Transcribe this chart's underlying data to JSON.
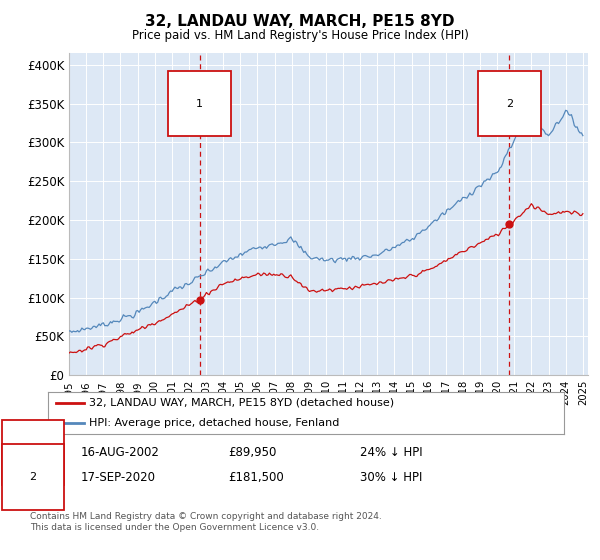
{
  "title": "32, LANDAU WAY, MARCH, PE15 8YD",
  "subtitle": "Price paid vs. HM Land Registry's House Price Index (HPI)",
  "y_ticks": [
    0,
    50000,
    100000,
    150000,
    200000,
    250000,
    300000,
    350000,
    400000
  ],
  "y_tick_labels": [
    "£0",
    "£50K",
    "£100K",
    "£150K",
    "£200K",
    "£250K",
    "£300K",
    "£350K",
    "£400K"
  ],
  "hpi_color": "#5588bb",
  "price_color": "#cc1111",
  "background_color": "#dde8f5",
  "marker1_year": 2002.625,
  "marker1_price": 89950,
  "marker1_date": "16-AUG-2002",
  "marker1_pct": "24% ↓ HPI",
  "marker2_year": 2020.708,
  "marker2_price": 181500,
  "marker2_date": "17-SEP-2020",
  "marker2_pct": "30% ↓ HPI",
  "legend_label1": "32, LANDAU WAY, MARCH, PE15 8YD (detached house)",
  "legend_label2": "HPI: Average price, detached house, Fenland",
  "footnote": "Contains HM Land Registry data © Crown copyright and database right 2024.\nThis data is licensed under the Open Government Licence v3.0."
}
